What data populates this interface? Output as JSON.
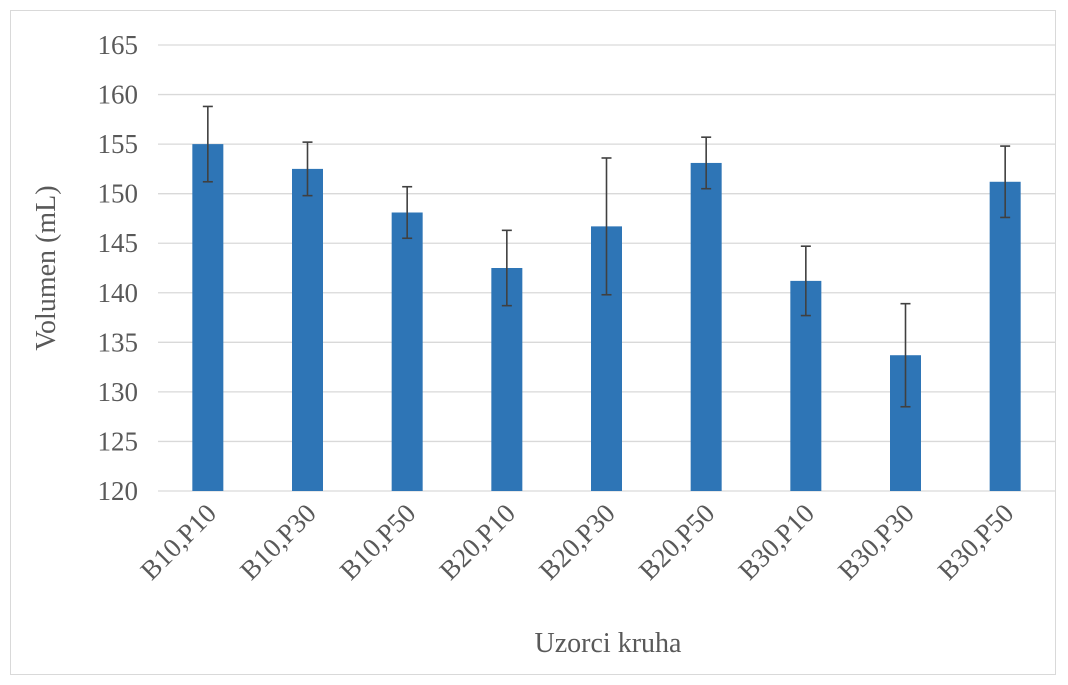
{
  "chart_data": {
    "type": "bar",
    "title": "",
    "xlabel": "Uzorci kruha",
    "ylabel": "Volumen (mL)",
    "ylim": [
      120,
      165
    ],
    "yticks": [
      120,
      125,
      130,
      135,
      140,
      145,
      150,
      155,
      160,
      165
    ],
    "ytick_labels": [
      "120",
      "125",
      "130",
      "135",
      "140",
      "145",
      "150",
      "155",
      "160",
      "165"
    ],
    "categories": [
      "B10,P10",
      "B10,P30",
      "B10,P50",
      "B20,P10",
      "B20,P30",
      "B20,P50",
      "B30,P10",
      "B30,P30",
      "B30,P50"
    ],
    "series": [
      {
        "values": [
          155.0,
          152.5,
          148.1,
          142.5,
          146.7,
          153.1,
          141.2,
          133.7,
          151.2
        ],
        "error": [
          3.8,
          2.7,
          2.6,
          3.8,
          6.9,
          2.6,
          3.5,
          5.2,
          3.6
        ],
        "color": "#2E75B6"
      }
    ],
    "grid": true,
    "legend": "none"
  }
}
